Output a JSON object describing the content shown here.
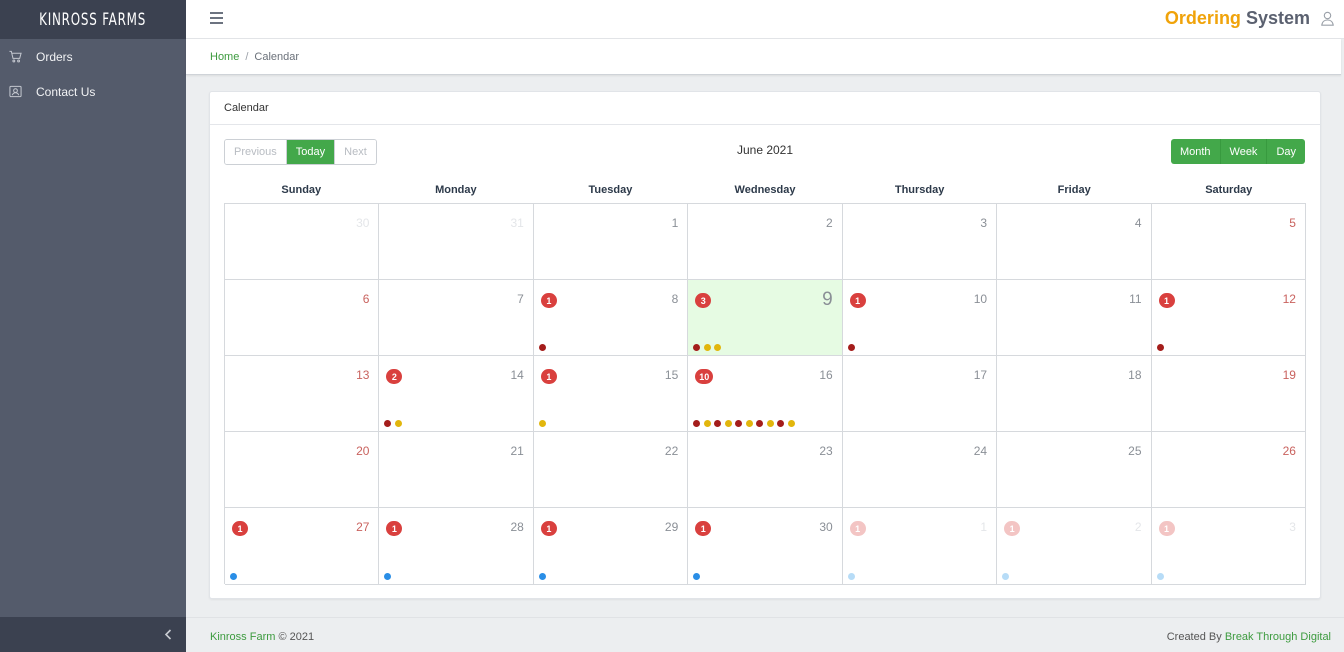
{
  "brand": "KINROSS FARMS",
  "sidebar": {
    "items": [
      {
        "label": "Orders",
        "icon": "cart-icon"
      },
      {
        "label": "Contact Us",
        "icon": "contact-icon"
      }
    ]
  },
  "header": {
    "title_part1": "Ordering",
    "title_part2": "System"
  },
  "breadcrumb": {
    "home": "Home",
    "separator": "/",
    "current": "Calendar"
  },
  "card": {
    "title": "Calendar"
  },
  "toolbar": {
    "previous": "Previous",
    "today": "Today",
    "next": "Next",
    "month_title": "June 2021",
    "views": [
      "Month",
      "Week",
      "Day"
    ],
    "active_view": "Month"
  },
  "colors": {
    "accent_green": "#43a84a",
    "brand_orange": "#f0a30a",
    "badge_red": "#d9403e",
    "today_bg": "#e6fbe3",
    "dot_darkred": "#a41d1b",
    "dot_yellow": "#e2b60c",
    "dot_blue": "#2a8ee6",
    "dot_lightblue": "#b7dcf7"
  },
  "calendar": {
    "days_of_week": [
      "Sunday",
      "Monday",
      "Tuesday",
      "Wednesday",
      "Thursday",
      "Friday",
      "Saturday"
    ],
    "weeks": [
      [
        {
          "day": "30",
          "other": true
        },
        {
          "day": "31",
          "other": true
        },
        {
          "day": "1"
        },
        {
          "day": "2"
        },
        {
          "day": "3"
        },
        {
          "day": "4"
        },
        {
          "day": "5",
          "weekend": true
        }
      ],
      [
        {
          "day": "6",
          "weekend": true
        },
        {
          "day": "7"
        },
        {
          "day": "8",
          "badge": "1",
          "dots": [
            "darkred"
          ]
        },
        {
          "day": "9",
          "today": true,
          "badge": "3",
          "dots": [
            "darkred",
            "yellow",
            "yellow"
          ]
        },
        {
          "day": "10",
          "badge": "1",
          "dots": [
            "darkred"
          ]
        },
        {
          "day": "11"
        },
        {
          "day": "12",
          "weekend": true,
          "badge": "1",
          "dots": [
            "darkred"
          ]
        }
      ],
      [
        {
          "day": "13",
          "weekend": true
        },
        {
          "day": "14",
          "badge": "2",
          "dots": [
            "darkred",
            "yellow"
          ]
        },
        {
          "day": "15",
          "badge": "1",
          "dots": [
            "yellow"
          ]
        },
        {
          "day": "16",
          "badge": "10",
          "dots": [
            "darkred",
            "yellow",
            "darkred",
            "yellow",
            "darkred",
            "yellow",
            "darkred",
            "yellow",
            "darkred",
            "yellow"
          ]
        },
        {
          "day": "17"
        },
        {
          "day": "18"
        },
        {
          "day": "19",
          "weekend": true
        }
      ],
      [
        {
          "day": "20",
          "weekend": true
        },
        {
          "day": "21"
        },
        {
          "day": "22"
        },
        {
          "day": "23"
        },
        {
          "day": "24"
        },
        {
          "day": "25"
        },
        {
          "day": "26",
          "weekend": true
        }
      ],
      [
        {
          "day": "27",
          "weekend": true,
          "badge": "1",
          "dots": [
            "blue"
          ]
        },
        {
          "day": "28",
          "badge": "1",
          "dots": [
            "blue"
          ]
        },
        {
          "day": "29",
          "badge": "1",
          "dots": [
            "blue"
          ]
        },
        {
          "day": "30",
          "badge": "1",
          "dots": [
            "blue"
          ]
        },
        {
          "day": "1",
          "other": true,
          "badge": "1",
          "dots": [
            "lightblue"
          ]
        },
        {
          "day": "2",
          "other": true,
          "badge": "1",
          "dots": [
            "lightblue"
          ]
        },
        {
          "day": "3",
          "other": true,
          "badge": "1",
          "dots": [
            "lightblue"
          ]
        }
      ]
    ]
  },
  "footer": {
    "left_brand": "Kinross Farm",
    "left_text": " © 2021",
    "right_text": "Created By ",
    "right_link": "Break Through Digital"
  }
}
